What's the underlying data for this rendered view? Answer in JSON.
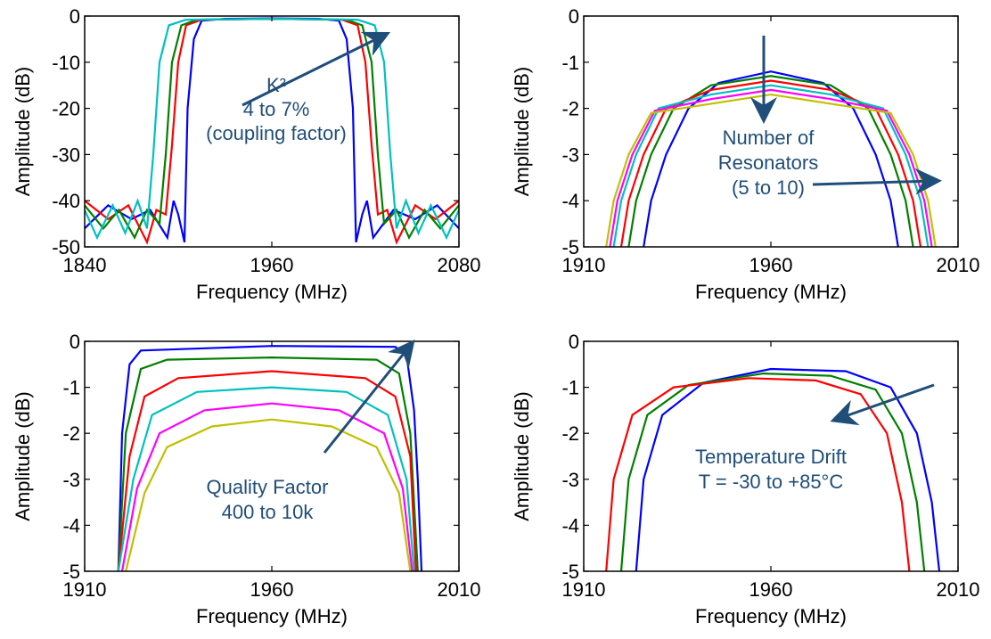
{
  "chart_data": [
    {
      "type": "line",
      "xlabel": "Frequency (MHz)",
      "ylabel": "Amplitude (dB)",
      "xlim": [
        1840,
        2080
      ],
      "ylim": [
        -50,
        0
      ],
      "xticks": [
        1840,
        1960,
        2080
      ],
      "yticks": [
        0,
        -10,
        -20,
        -30,
        -40,
        -50
      ],
      "annotation": [
        "K²",
        "4 to 7%",
        "(coupling factor)"
      ],
      "colors": [
        "#0000ff",
        "#ff0000",
        "#008000",
        "#00c0c0"
      ],
      "series": [
        {
          "values": [
            [
              1840,
              -46
            ],
            [
              1855,
              -41
            ],
            [
              1870,
              -44
            ],
            [
              1882,
              -42
            ],
            [
              1893,
              -48
            ],
            [
              1897,
              -40
            ],
            [
              1900,
              -43
            ],
            [
              1904,
              -49
            ],
            [
              1906,
              -20
            ],
            [
              1910,
              -5
            ],
            [
              1915,
              -1
            ],
            [
              1930,
              -0.6
            ],
            [
              1960,
              -0.5
            ],
            [
              1990,
              -0.6
            ],
            [
              2003,
              -1
            ],
            [
              2008,
              -5
            ],
            [
              2012,
              -20
            ],
            [
              2014,
              -49
            ],
            [
              2018,
              -43
            ],
            [
              2021,
              -40
            ],
            [
              2025,
              -48
            ],
            [
              2038,
              -42
            ],
            [
              2052,
              -44
            ],
            [
              2066,
              -41
            ],
            [
              2080,
              -46
            ]
          ]
        },
        {
          "values": [
            [
              1840,
              -40
            ],
            [
              1855,
              -44
            ],
            [
              1868,
              -41
            ],
            [
              1880,
              -49
            ],
            [
              1886,
              -42
            ],
            [
              1892,
              -43
            ],
            [
              1896,
              -28
            ],
            [
              1900,
              -10
            ],
            [
              1905,
              -2
            ],
            [
              1915,
              -0.8
            ],
            [
              1960,
              -0.6
            ],
            [
              2005,
              -0.8
            ],
            [
              2015,
              -2
            ],
            [
              2020,
              -10
            ],
            [
              2024,
              -28
            ],
            [
              2028,
              -43
            ],
            [
              2034,
              -42
            ],
            [
              2040,
              -49
            ],
            [
              2052,
              -41
            ],
            [
              2065,
              -44
            ],
            [
              2080,
              -40
            ]
          ]
        },
        {
          "values": [
            [
              1840,
              -41
            ],
            [
              1852,
              -46
            ],
            [
              1862,
              -42
            ],
            [
              1872,
              -48
            ],
            [
              1880,
              -42
            ],
            [
              1888,
              -45
            ],
            [
              1892,
              -30
            ],
            [
              1896,
              -10
            ],
            [
              1902,
              -2
            ],
            [
              1912,
              -0.8
            ],
            [
              1960,
              -0.6
            ],
            [
              2008,
              -0.8
            ],
            [
              2018,
              -2
            ],
            [
              2024,
              -10
            ],
            [
              2028,
              -30
            ],
            [
              2032,
              -45
            ],
            [
              2040,
              -42
            ],
            [
              2048,
              -48
            ],
            [
              2058,
              -42
            ],
            [
              2068,
              -46
            ],
            [
              2080,
              -41
            ]
          ]
        },
        {
          "values": [
            [
              1840,
              -42
            ],
            [
              1848,
              -48
            ],
            [
              1858,
              -41
            ],
            [
              1866,
              -47
            ],
            [
              1874,
              -40
            ],
            [
              1880,
              -46
            ],
            [
              1884,
              -30
            ],
            [
              1888,
              -10
            ],
            [
              1894,
              -2
            ],
            [
              1905,
              -0.8
            ],
            [
              1960,
              -0.6
            ],
            [
              2015,
              -0.8
            ],
            [
              2026,
              -2
            ],
            [
              2032,
              -10
            ],
            [
              2036,
              -30
            ],
            [
              2040,
              -46
            ],
            [
              2046,
              -40
            ],
            [
              2054,
              -47
            ],
            [
              2062,
              -41
            ],
            [
              2072,
              -48
            ],
            [
              2080,
              -42
            ]
          ]
        }
      ]
    },
    {
      "type": "line",
      "xlabel": "Frequency (MHz)",
      "ylabel": "Amplitude (dB)",
      "xlim": [
        1910,
        2010
      ],
      "ylim": [
        -5,
        0
      ],
      "xticks": [
        1910,
        1960,
        2010
      ],
      "yticks": [
        0,
        -1,
        -2,
        -3,
        -4,
        -5
      ],
      "annotation": [
        "Number of",
        "Resonators",
        "(5 to 10)"
      ],
      "colors": [
        "#0000ff",
        "#008000",
        "#ff0000",
        "#00c0c0",
        "#ff00ff",
        "#c0c000"
      ],
      "series": [
        {
          "values": [
            [
              1926,
              -5
            ],
            [
              1928,
              -4
            ],
            [
              1932,
              -3
            ],
            [
              1938,
              -2
            ],
            [
              1946,
              -1.45
            ],
            [
              1960,
              -1.2
            ],
            [
              1974,
              -1.45
            ],
            [
              1982,
              -2
            ],
            [
              1988,
              -3
            ],
            [
              1992,
              -4
            ],
            [
              1994,
              -5
            ]
          ]
        },
        {
          "values": [
            [
              1922,
              -5
            ],
            [
              1924,
              -4
            ],
            [
              1928,
              -3
            ],
            [
              1934,
              -2
            ],
            [
              1944,
              -1.5
            ],
            [
              1960,
              -1.3
            ],
            [
              1976,
              -1.5
            ],
            [
              1986,
              -2
            ],
            [
              1992,
              -3
            ],
            [
              1996,
              -4
            ],
            [
              1998,
              -5
            ]
          ]
        },
        {
          "values": [
            [
              1920,
              -5
            ],
            [
              1922,
              -4
            ],
            [
              1926,
              -3
            ],
            [
              1932,
              -2
            ],
            [
              1944,
              -1.6
            ],
            [
              1960,
              -1.4
            ],
            [
              1976,
              -1.6
            ],
            [
              1988,
              -2
            ],
            [
              1994,
              -3
            ],
            [
              1998,
              -4
            ],
            [
              2000,
              -5
            ]
          ]
        },
        {
          "values": [
            [
              1918,
              -5
            ],
            [
              1920,
              -4
            ],
            [
              1924,
              -3
            ],
            [
              1930,
              -2
            ],
            [
              1944,
              -1.7
            ],
            [
              1960,
              -1.5
            ],
            [
              1976,
              -1.7
            ],
            [
              1990,
              -2
            ],
            [
              1996,
              -3
            ],
            [
              2000,
              -4
            ],
            [
              2002,
              -5
            ]
          ]
        },
        {
          "values": [
            [
              1917,
              -5
            ],
            [
              1919,
              -4
            ],
            [
              1923,
              -3
            ],
            [
              1929,
              -2.05
            ],
            [
              1944,
              -1.8
            ],
            [
              1960,
              -1.6
            ],
            [
              1976,
              -1.8
            ],
            [
              1991,
              -2.05
            ],
            [
              1997,
              -3
            ],
            [
              2001,
              -4
            ],
            [
              2003,
              -5
            ]
          ]
        },
        {
          "values": [
            [
              1916,
              -5
            ],
            [
              1918,
              -4
            ],
            [
              1922,
              -3
            ],
            [
              1928,
              -2.1
            ],
            [
              1944,
              -1.9
            ],
            [
              1960,
              -1.7
            ],
            [
              1976,
              -1.9
            ],
            [
              1992,
              -2.1
            ],
            [
              1998,
              -3
            ],
            [
              2002,
              -4
            ],
            [
              2004,
              -5
            ]
          ]
        }
      ]
    },
    {
      "type": "line",
      "xlabel": "Frequency (MHz)",
      "ylabel": "Amplitude (dB)",
      "xlim": [
        1910,
        2010
      ],
      "ylim": [
        -5,
        0
      ],
      "xticks": [
        1910,
        1960,
        2010
      ],
      "yticks": [
        0,
        -1,
        -2,
        -3,
        -4,
        -5
      ],
      "annotation": [
        "Quality Factor",
        "400 to 10k"
      ],
      "colors": [
        "#0000ff",
        "#008000",
        "#ff0000",
        "#00c0c0",
        "#ff00ff",
        "#c0c000"
      ],
      "series": [
        {
          "values": [
            [
              1919,
              -5
            ],
            [
              1920,
              -2
            ],
            [
              1922,
              -0.5
            ],
            [
              1925,
              -0.2
            ],
            [
              1960,
              -0.1
            ],
            [
              1993,
              -0.12
            ],
            [
              1996,
              -0.3
            ],
            [
              1998,
              -1.5
            ],
            [
              1999,
              -3
            ],
            [
              2000,
              -5
            ]
          ]
        },
        {
          "values": [
            [
              1919,
              -5
            ],
            [
              1921,
              -2
            ],
            [
              1925,
              -0.6
            ],
            [
              1932,
              -0.4
            ],
            [
              1960,
              -0.35
            ],
            [
              1988,
              -0.4
            ],
            [
              1994,
              -0.7
            ],
            [
              1997,
              -2
            ],
            [
              1999,
              -5
            ]
          ]
        },
        {
          "values": [
            [
              1919,
              -5
            ],
            [
              1922,
              -2.5
            ],
            [
              1926,
              -1.2
            ],
            [
              1935,
              -0.8
            ],
            [
              1960,
              -0.65
            ],
            [
              1985,
              -0.8
            ],
            [
              1993,
              -1.2
            ],
            [
              1997,
              -2.5
            ],
            [
              1998.5,
              -5
            ]
          ]
        },
        {
          "values": [
            [
              1919,
              -5
            ],
            [
              1923,
              -3
            ],
            [
              1928,
              -1.6
            ],
            [
              1940,
              -1.1
            ],
            [
              1960,
              -1
            ],
            [
              1980,
              -1.1
            ],
            [
              1991,
              -1.6
            ],
            [
              1996,
              -3
            ],
            [
              1998,
              -5
            ]
          ]
        },
        {
          "values": [
            [
              1920,
              -5
            ],
            [
              1924,
              -3.2
            ],
            [
              1930,
              -2
            ],
            [
              1942,
              -1.5
            ],
            [
              1960,
              -1.35
            ],
            [
              1978,
              -1.5
            ],
            [
              1990,
              -2
            ],
            [
              1995,
              -3.2
            ],
            [
              1997.5,
              -5
            ]
          ]
        },
        {
          "values": [
            [
              1921,
              -5
            ],
            [
              1926,
              -3.3
            ],
            [
              1932,
              -2.3
            ],
            [
              1944,
              -1.85
            ],
            [
              1960,
              -1.7
            ],
            [
              1976,
              -1.85
            ],
            [
              1988,
              -2.3
            ],
            [
              1994,
              -3.3
            ],
            [
              1997,
              -5
            ]
          ]
        }
      ]
    },
    {
      "type": "line",
      "xlabel": "Frequency (MHz)",
      "ylabel": "Amplitude (dB)",
      "xlim": [
        1910,
        2010
      ],
      "ylim": [
        -5,
        0
      ],
      "xticks": [
        1910,
        1960,
        2010
      ],
      "yticks": [
        0,
        -1,
        -2,
        -3,
        -4,
        -5
      ],
      "annotation": [
        "Temperature Drift",
        "T = -30 to +85°C"
      ],
      "colors": [
        "#0000ff",
        "#008000",
        "#ff0000"
      ],
      "series": [
        {
          "values": [
            [
              1924,
              -5
            ],
            [
              1926,
              -3
            ],
            [
              1931,
              -1.6
            ],
            [
              1942,
              -0.9
            ],
            [
              1960,
              -0.6
            ],
            [
              1980,
              -0.65
            ],
            [
              1992,
              -1
            ],
            [
              1999,
              -2
            ],
            [
              2003,
              -3.5
            ],
            [
              2005,
              -5
            ]
          ]
        },
        {
          "values": [
            [
              1920,
              -5
            ],
            [
              1922,
              -3
            ],
            [
              1927,
              -1.6
            ],
            [
              1938,
              -0.95
            ],
            [
              1958,
              -0.7
            ],
            [
              1976,
              -0.75
            ],
            [
              1988,
              -1.05
            ],
            [
              1995,
              -2
            ],
            [
              1999,
              -3.5
            ],
            [
              2001,
              -5
            ]
          ]
        },
        {
          "values": [
            [
              1916,
              -5
            ],
            [
              1918,
              -3
            ],
            [
              1923,
              -1.6
            ],
            [
              1934,
              -1
            ],
            [
              1954,
              -0.8
            ],
            [
              1972,
              -0.85
            ],
            [
              1984,
              -1.15
            ],
            [
              1991,
              -2
            ],
            [
              1995,
              -3.5
            ],
            [
              1997,
              -5
            ]
          ]
        }
      ]
    }
  ]
}
